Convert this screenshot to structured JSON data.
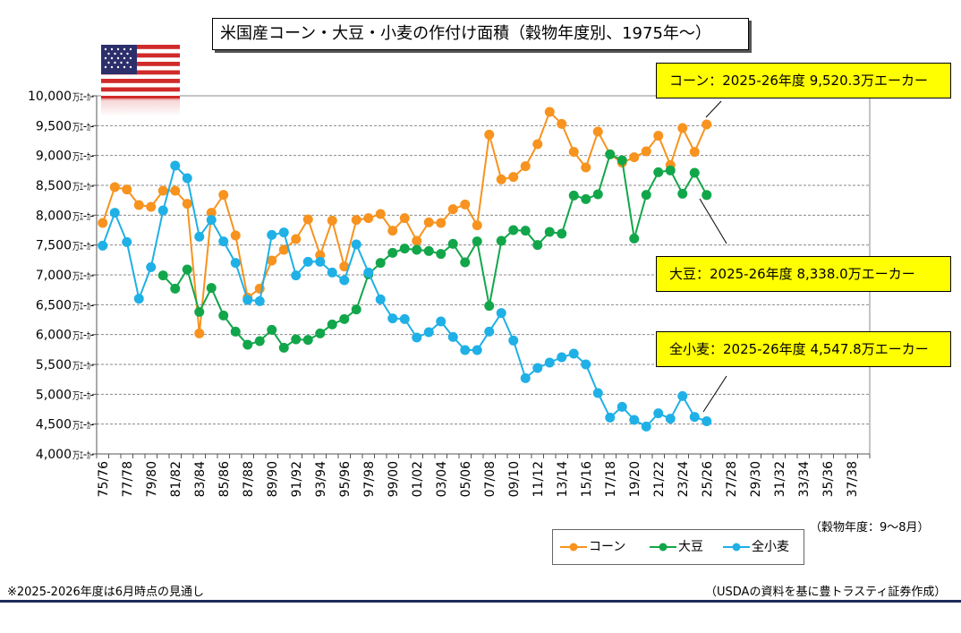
{
  "title": "米国産コーン・大豆・小麦の作付け面積（穀物年度別、1975年〜）",
  "season_note": "（穀物年度：9〜8月）",
  "footnote": "※2025-2026年度は6月時点の見通し",
  "source": "（USDAの資料を基に豊トラスティ証券作成）",
  "callouts": {
    "corn": "コーン：2025-26年度  9,520.3万エーカー",
    "soy": "大豆：2025-26年度  8,338.0万エーカー",
    "wheat": "全小麦：2025-26年度  4,547.8万エーカー"
  },
  "colors": {
    "corn": "#f7931e",
    "soy": "#12a64a",
    "wheat": "#1fb0e6",
    "callout_bg": "#ffff00",
    "rule": "#1f2a5a"
  },
  "chart_data": {
    "type": "line",
    "unit_suffix": "万ｴｰｶｰ",
    "ylim": [
      4000,
      10000
    ],
    "yticks": [
      "4,000",
      "4,500",
      "5,000",
      "5,500",
      "6,000",
      "6,500",
      "7,000",
      "7,500",
      "8,000",
      "8,500",
      "9,000",
      "9,500",
      "10,000"
    ],
    "grid": "horizontal",
    "legend": "bottom-right",
    "xlabels": [
      "75/76",
      "77/78",
      "79/80",
      "81/82",
      "83/84",
      "85/86",
      "87/88",
      "89/90",
      "91/92",
      "93/94",
      "95/96",
      "97/98",
      "99/00",
      "01/02",
      "03/04",
      "05/06",
      "07/08",
      "09/10",
      "11/12",
      "13/14",
      "15/16",
      "17/18",
      "19/20",
      "21/22",
      "23/24",
      "25/26",
      "27/28",
      "29/30",
      "31/32",
      "33/34",
      "35/36",
      "37/38"
    ],
    "x_slots": 64,
    "series": [
      {
        "name": "コーン",
        "key": "corn",
        "values": [
          7870,
          8470,
          8430,
          8170,
          8140,
          8410,
          8410,
          8190,
          6020,
          8040,
          8340,
          7660,
          6620,
          6770,
          7240,
          7420,
          7600,
          7930,
          7330,
          7910,
          7140,
          7920,
          7950,
          8020,
          7740,
          7950,
          7570,
          7880,
          7870,
          8100,
          8180,
          7830,
          9350,
          8600,
          8640,
          8820,
          9190,
          9730,
          9530,
          9060,
          8800,
          9400,
          9020,
          8880,
          8970,
          9070,
          9330,
          8840,
          9460,
          9060,
          9520
        ]
      },
      {
        "name": "大豆",
        "key": "soy",
        "values": [
          null,
          null,
          null,
          null,
          null,
          6990,
          6770,
          7090,
          6380,
          6780,
          6320,
          6050,
          5830,
          5890,
          6080,
          5780,
          5920,
          5910,
          6020,
          6170,
          6260,
          6420,
          7010,
          7200,
          7370,
          7440,
          7420,
          7400,
          7350,
          7520,
          7210,
          7560,
          6480,
          7570,
          7750,
          7740,
          7500,
          7720,
          7690,
          8330,
          8270,
          8350,
          9020,
          8920,
          7610,
          8340,
          8720,
          8750,
          8360,
          8710,
          8338
        ]
      },
      {
        "name": "全小麦",
        "key": "wheat",
        "values": [
          7490,
          8040,
          7550,
          6600,
          7130,
          8080,
          8830,
          8620,
          7640,
          7920,
          7560,
          7200,
          6580,
          6560,
          7670,
          7710,
          6990,
          7220,
          7220,
          7040,
          6910,
          7510,
          7040,
          6590,
          6270,
          6260,
          5950,
          6040,
          6220,
          5960,
          5740,
          5740,
          6050,
          6360,
          5900,
          5270,
          5440,
          5530,
          5620,
          5680,
          5500,
          5020,
          4610,
          4790,
          4570,
          4460,
          4680,
          4590,
          4970,
          4620,
          4548
        ]
      }
    ]
  }
}
